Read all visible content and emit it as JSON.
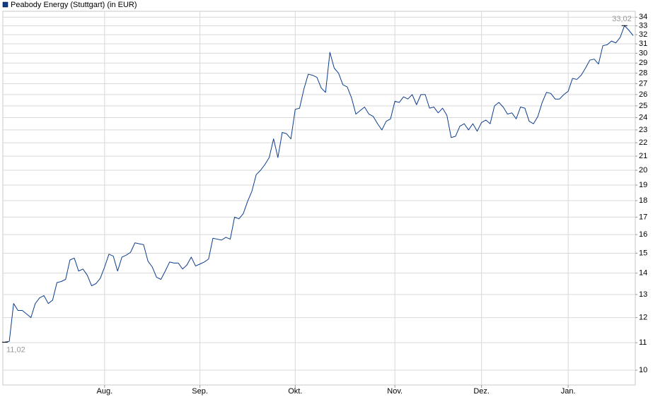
{
  "chart_data": {
    "type": "line",
    "yscale": "log",
    "grid": true,
    "legend": "top-left",
    "xlim": [
      0,
      145
    ],
    "xticks": [
      {
        "value": 23,
        "label": "Aug."
      },
      {
        "value": 45,
        "label": "Sep."
      },
      {
        "value": 67,
        "label": "Okt."
      },
      {
        "value": 90,
        "label": "Nov."
      },
      {
        "value": 110,
        "label": "Dez."
      },
      {
        "value": 130,
        "label": "Jan."
      }
    ],
    "ylim": [
      9.5,
      34.7
    ],
    "yticks": [
      10,
      11,
      12,
      13,
      14,
      15,
      16,
      17,
      18,
      19,
      20,
      21,
      22,
      23,
      24,
      25,
      26,
      27,
      28,
      29,
      30,
      31,
      32,
      33,
      34
    ],
    "series": [
      {
        "name": "Peabody Energy (Stuttgart) (in EUR)",
        "color": "#0d3d8c",
        "values": [
          11.02,
          11.05,
          12.6,
          12.3,
          12.3,
          12.15,
          12.0,
          12.6,
          12.85,
          12.95,
          12.6,
          12.75,
          13.55,
          13.6,
          13.7,
          14.65,
          14.75,
          14.1,
          14.2,
          13.9,
          13.4,
          13.5,
          13.75,
          14.3,
          14.95,
          14.85,
          14.1,
          14.8,
          14.9,
          15.05,
          15.55,
          15.5,
          15.45,
          14.6,
          14.3,
          13.8,
          13.7,
          14.1,
          14.55,
          14.5,
          14.5,
          14.2,
          14.4,
          14.8,
          14.35,
          14.45,
          14.55,
          14.7,
          15.8,
          15.75,
          15.7,
          15.85,
          15.75,
          17.0,
          16.9,
          17.2,
          17.95,
          18.6,
          19.7,
          20.0,
          20.4,
          20.9,
          22.3,
          20.9,
          22.8,
          22.7,
          22.3,
          24.7,
          24.8,
          26.5,
          27.9,
          27.8,
          27.6,
          26.6,
          26.2,
          30.1,
          28.5,
          28.0,
          26.9,
          26.7,
          25.7,
          24.3,
          24.6,
          24.9,
          24.3,
          24.1,
          23.5,
          23.0,
          23.7,
          23.9,
          25.4,
          25.3,
          25.8,
          25.6,
          26.0,
          25.1,
          26.0,
          26.0,
          24.8,
          24.9,
          24.4,
          24.8,
          24.2,
          22.4,
          22.5,
          23.3,
          23.5,
          23.0,
          23.5,
          22.9,
          23.6,
          23.8,
          23.5,
          25.0,
          25.3,
          24.9,
          24.3,
          24.4,
          23.9,
          24.9,
          24.8,
          23.7,
          23.5,
          24.1,
          25.3,
          26.2,
          26.1,
          25.6,
          25.6,
          26.0,
          26.3,
          27.5,
          27.4,
          27.8,
          28.5,
          29.3,
          29.4,
          28.9,
          30.8,
          30.9,
          31.3,
          31.1,
          31.7,
          33.02,
          32.5,
          31.9
        ],
        "value_labels": [
          "11,02",
          null,
          null,
          null,
          null,
          null,
          null,
          null,
          null,
          null,
          null,
          null,
          null,
          null,
          null,
          null,
          null,
          null,
          null,
          null,
          null,
          null,
          null,
          null,
          null,
          null,
          null,
          null,
          null,
          null,
          null,
          null,
          null,
          null,
          null,
          null,
          null,
          null,
          null,
          null,
          null,
          null,
          null,
          null,
          null,
          null,
          null,
          null,
          null,
          null,
          null,
          null,
          null,
          null,
          null,
          null,
          null,
          null,
          null,
          null,
          null,
          null,
          null,
          null,
          null,
          null,
          null,
          null,
          null,
          null,
          null,
          null,
          null,
          null,
          null,
          null,
          null,
          null,
          null,
          null,
          null,
          null,
          null,
          null,
          null,
          null,
          null,
          null,
          null,
          null,
          null,
          null,
          null,
          null,
          null,
          null,
          null,
          null,
          null,
          null,
          null,
          null,
          null,
          null,
          null,
          null,
          null,
          null,
          null,
          null,
          null,
          null,
          null,
          null,
          null,
          null,
          null,
          null,
          null,
          null,
          null,
          null,
          null,
          null,
          null,
          null,
          null,
          null,
          null,
          null,
          null,
          null,
          null,
          null,
          null,
          null,
          null,
          null,
          null,
          null,
          null,
          null,
          null,
          "33,02",
          null,
          null
        ]
      }
    ]
  }
}
